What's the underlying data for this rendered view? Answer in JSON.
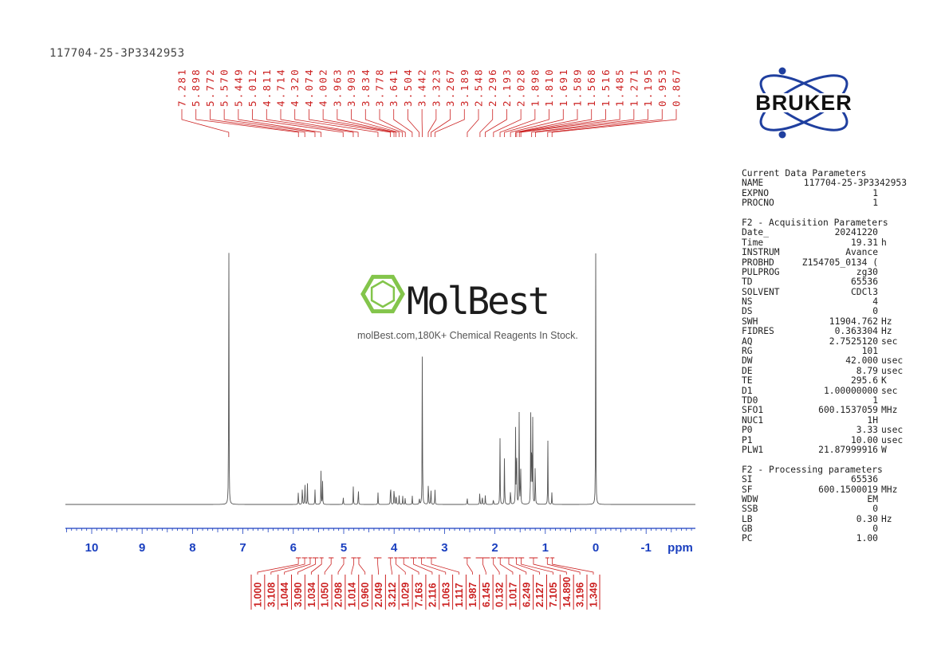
{
  "sample_name": "117704-25-3P3342953",
  "brand_logo": "BRUKER",
  "watermark": {
    "brand": "MolBest",
    "tagline": "molBest.com,180K+ Chemical Reagents In Stock."
  },
  "colors": {
    "peak_labels": "#cc2222",
    "axis": "#1a3fbf",
    "spectrum": "#555555",
    "logo_blue": "#1f3f9f",
    "watermark_green": "#7dc242"
  },
  "chart_data": {
    "type": "line",
    "xlabel": "ppm",
    "xlim": [
      10.5,
      -2.0
    ],
    "x_reversed": true,
    "x_ticks": [
      "10",
      "9",
      "8",
      "7",
      "6",
      "5",
      "4",
      "3",
      "2",
      "1",
      "0",
      "-1"
    ],
    "peak_labels": [
      "7.281",
      "5.898",
      "5.772",
      "5.570",
      "5.449",
      "5.012",
      "4.811",
      "4.714",
      "4.320",
      "4.074",
      "4.002",
      "3.963",
      "3.903",
      "3.834",
      "3.778",
      "3.641",
      "3.504",
      "3.442",
      "3.323",
      "3.267",
      "3.189",
      "2.548",
      "2.296",
      "2.193",
      "2.028",
      "1.898",
      "1.810",
      "1.691",
      "1.589",
      "1.568",
      "1.516",
      "1.485",
      "1.271",
      "1.195",
      "0.953",
      "0.867"
    ],
    "integrals": [
      {
        "from": 5.95,
        "to": 5.85,
        "value": "1.000"
      },
      {
        "from": 5.83,
        "to": 5.72,
        "value": "3.108"
      },
      {
        "from": 5.7,
        "to": 5.63,
        "value": "1.044"
      },
      {
        "from": 5.62,
        "to": 5.5,
        "value": "3.090"
      },
      {
        "from": 5.48,
        "to": 5.4,
        "value": "1.034"
      },
      {
        "from": 5.3,
        "to": 5.2,
        "value": "1.050"
      },
      {
        "from": 5.05,
        "to": 4.95,
        "value": "2.098"
      },
      {
        "from": 4.85,
        "to": 4.75,
        "value": "1.014"
      },
      {
        "from": 4.74,
        "to": 4.66,
        "value": "0.960"
      },
      {
        "from": 4.4,
        "to": 4.25,
        "value": "2.049"
      },
      {
        "from": 4.12,
        "to": 4.02,
        "value": "3.212"
      },
      {
        "from": 4.0,
        "to": 3.93,
        "value": "1.029"
      },
      {
        "from": 3.92,
        "to": 3.7,
        "value": "7.163"
      },
      {
        "from": 3.68,
        "to": 3.55,
        "value": "2.116"
      },
      {
        "from": 3.53,
        "to": 3.38,
        "value": "1.063"
      },
      {
        "from": 3.36,
        "to": 3.16,
        "value": "1.117"
      },
      {
        "from": 2.62,
        "to": 2.48,
        "value": "1.987"
      },
      {
        "from": 2.38,
        "to": 2.1,
        "value": "6.145"
      },
      {
        "from": 2.08,
        "to": 1.98,
        "value": "0.132"
      },
      {
        "from": 1.95,
        "to": 1.84,
        "value": "1.017"
      },
      {
        "from": 1.83,
        "to": 1.62,
        "value": "6.249"
      },
      {
        "from": 1.6,
        "to": 1.55,
        "value": "2.127"
      },
      {
        "from": 1.54,
        "to": 1.42,
        "value": "7.105"
      },
      {
        "from": 1.32,
        "to": 1.15,
        "value": "14.890"
      },
      {
        "from": 1.0,
        "to": 0.92,
        "value": "3.196"
      },
      {
        "from": 0.9,
        "to": 0.82,
        "value": "1.349"
      }
    ],
    "peaks": [
      {
        "ppm": 7.28,
        "intensity": 1.0
      },
      {
        "ppm": 0.0,
        "intensity": 0.84
      },
      {
        "ppm": 5.9,
        "intensity": 0.05
      },
      {
        "ppm": 5.82,
        "intensity": 0.08
      },
      {
        "ppm": 5.77,
        "intensity": 0.1
      },
      {
        "ppm": 5.72,
        "intensity": 0.07
      },
      {
        "ppm": 5.57,
        "intensity": 0.05
      },
      {
        "ppm": 5.45,
        "intensity": 0.12
      },
      {
        "ppm": 5.42,
        "intensity": 0.08
      },
      {
        "ppm": 5.01,
        "intensity": 0.03
      },
      {
        "ppm": 4.81,
        "intensity": 0.06
      },
      {
        "ppm": 4.71,
        "intensity": 0.07
      },
      {
        "ppm": 4.32,
        "intensity": 0.04
      },
      {
        "ppm": 4.07,
        "intensity": 0.1
      },
      {
        "ppm": 4.0,
        "intensity": 0.08
      },
      {
        "ppm": 3.96,
        "intensity": 0.05
      },
      {
        "ppm": 3.9,
        "intensity": 0.03
      },
      {
        "ppm": 3.83,
        "intensity": 0.03
      },
      {
        "ppm": 3.78,
        "intensity": 0.025
      },
      {
        "ppm": 3.64,
        "intensity": 0.03
      },
      {
        "ppm": 3.5,
        "intensity": 0.03
      },
      {
        "ppm": 3.44,
        "intensity": 0.58
      },
      {
        "ppm": 3.32,
        "intensity": 0.1
      },
      {
        "ppm": 3.27,
        "intensity": 0.07
      },
      {
        "ppm": 3.19,
        "intensity": 0.06
      },
      {
        "ppm": 2.55,
        "intensity": 0.03
      },
      {
        "ppm": 2.3,
        "intensity": 0.05
      },
      {
        "ppm": 2.25,
        "intensity": 0.04
      },
      {
        "ppm": 2.19,
        "intensity": 0.035
      },
      {
        "ppm": 2.03,
        "intensity": 0.025
      },
      {
        "ppm": 1.9,
        "intensity": 0.25
      },
      {
        "ppm": 1.81,
        "intensity": 0.19
      },
      {
        "ppm": 1.69,
        "intensity": 0.07
      },
      {
        "ppm": 1.59,
        "intensity": 0.25
      },
      {
        "ppm": 1.57,
        "intensity": 0.3
      },
      {
        "ppm": 1.52,
        "intensity": 0.33
      },
      {
        "ppm": 1.49,
        "intensity": 0.18
      },
      {
        "ppm": 1.29,
        "intensity": 0.3
      },
      {
        "ppm": 1.27,
        "intensity": 0.33
      },
      {
        "ppm": 1.25,
        "intensity": 0.28
      },
      {
        "ppm": 1.2,
        "intensity": 0.18
      },
      {
        "ppm": 0.95,
        "intensity": 0.22
      },
      {
        "ppm": 0.87,
        "intensity": 0.04
      }
    ]
  },
  "parameters": {
    "current": {
      "title": "Current Data Parameters",
      "rows": [
        {
          "key": "NAME",
          "value": "117704-25-3P3342953",
          "unit": ""
        },
        {
          "key": "EXPNO",
          "value": "1",
          "unit": ""
        },
        {
          "key": "PROCNO",
          "value": "1",
          "unit": ""
        }
      ]
    },
    "acquisition": {
      "title": "F2 - Acquisition Parameters",
      "rows": [
        {
          "key": "Date_",
          "value": "20241220",
          "unit": ""
        },
        {
          "key": "Time",
          "value": "19.31",
          "unit": "h"
        },
        {
          "key": "INSTRUM",
          "value": "Avance",
          "unit": ""
        },
        {
          "key": "PROBHD",
          "value": "Z154705_0134 (",
          "unit": ""
        },
        {
          "key": "PULPROG",
          "value": "zg30",
          "unit": ""
        },
        {
          "key": "TD",
          "value": "65536",
          "unit": ""
        },
        {
          "key": "SOLVENT",
          "value": "CDCl3",
          "unit": ""
        },
        {
          "key": "NS",
          "value": "4",
          "unit": ""
        },
        {
          "key": "DS",
          "value": "0",
          "unit": ""
        },
        {
          "key": "SWH",
          "value": "11904.762",
          "unit": "Hz"
        },
        {
          "key": "FIDRES",
          "value": "0.363304",
          "unit": "Hz"
        },
        {
          "key": "AQ",
          "value": "2.7525120",
          "unit": "sec"
        },
        {
          "key": "RG",
          "value": "101",
          "unit": ""
        },
        {
          "key": "DW",
          "value": "42.000",
          "unit": "usec"
        },
        {
          "key": "DE",
          "value": "8.79",
          "unit": "usec"
        },
        {
          "key": "TE",
          "value": "295.6",
          "unit": "K"
        },
        {
          "key": "D1",
          "value": "1.00000000",
          "unit": "sec"
        },
        {
          "key": "TD0",
          "value": "1",
          "unit": ""
        },
        {
          "key": "SFO1",
          "value": "600.1537059",
          "unit": "MHz"
        },
        {
          "key": "NUC1",
          "value": "1H",
          "unit": ""
        },
        {
          "key": "P0",
          "value": "3.33",
          "unit": "usec"
        },
        {
          "key": "P1",
          "value": "10.00",
          "unit": "usec"
        },
        {
          "key": "PLW1",
          "value": "21.87999916",
          "unit": "W"
        }
      ]
    },
    "processing": {
      "title": "F2 - Processing parameters",
      "rows": [
        {
          "key": "SI",
          "value": "65536",
          "unit": ""
        },
        {
          "key": "SF",
          "value": "600.1500019",
          "unit": "MHz"
        },
        {
          "key": "WDW",
          "value": "EM",
          "unit": ""
        },
        {
          "key": "SSB",
          "value": "0",
          "unit": ""
        },
        {
          "key": "LB",
          "value": "0.30",
          "unit": "Hz"
        },
        {
          "key": "GB",
          "value": "0",
          "unit": ""
        },
        {
          "key": "PC",
          "value": "1.00",
          "unit": ""
        }
      ]
    }
  }
}
